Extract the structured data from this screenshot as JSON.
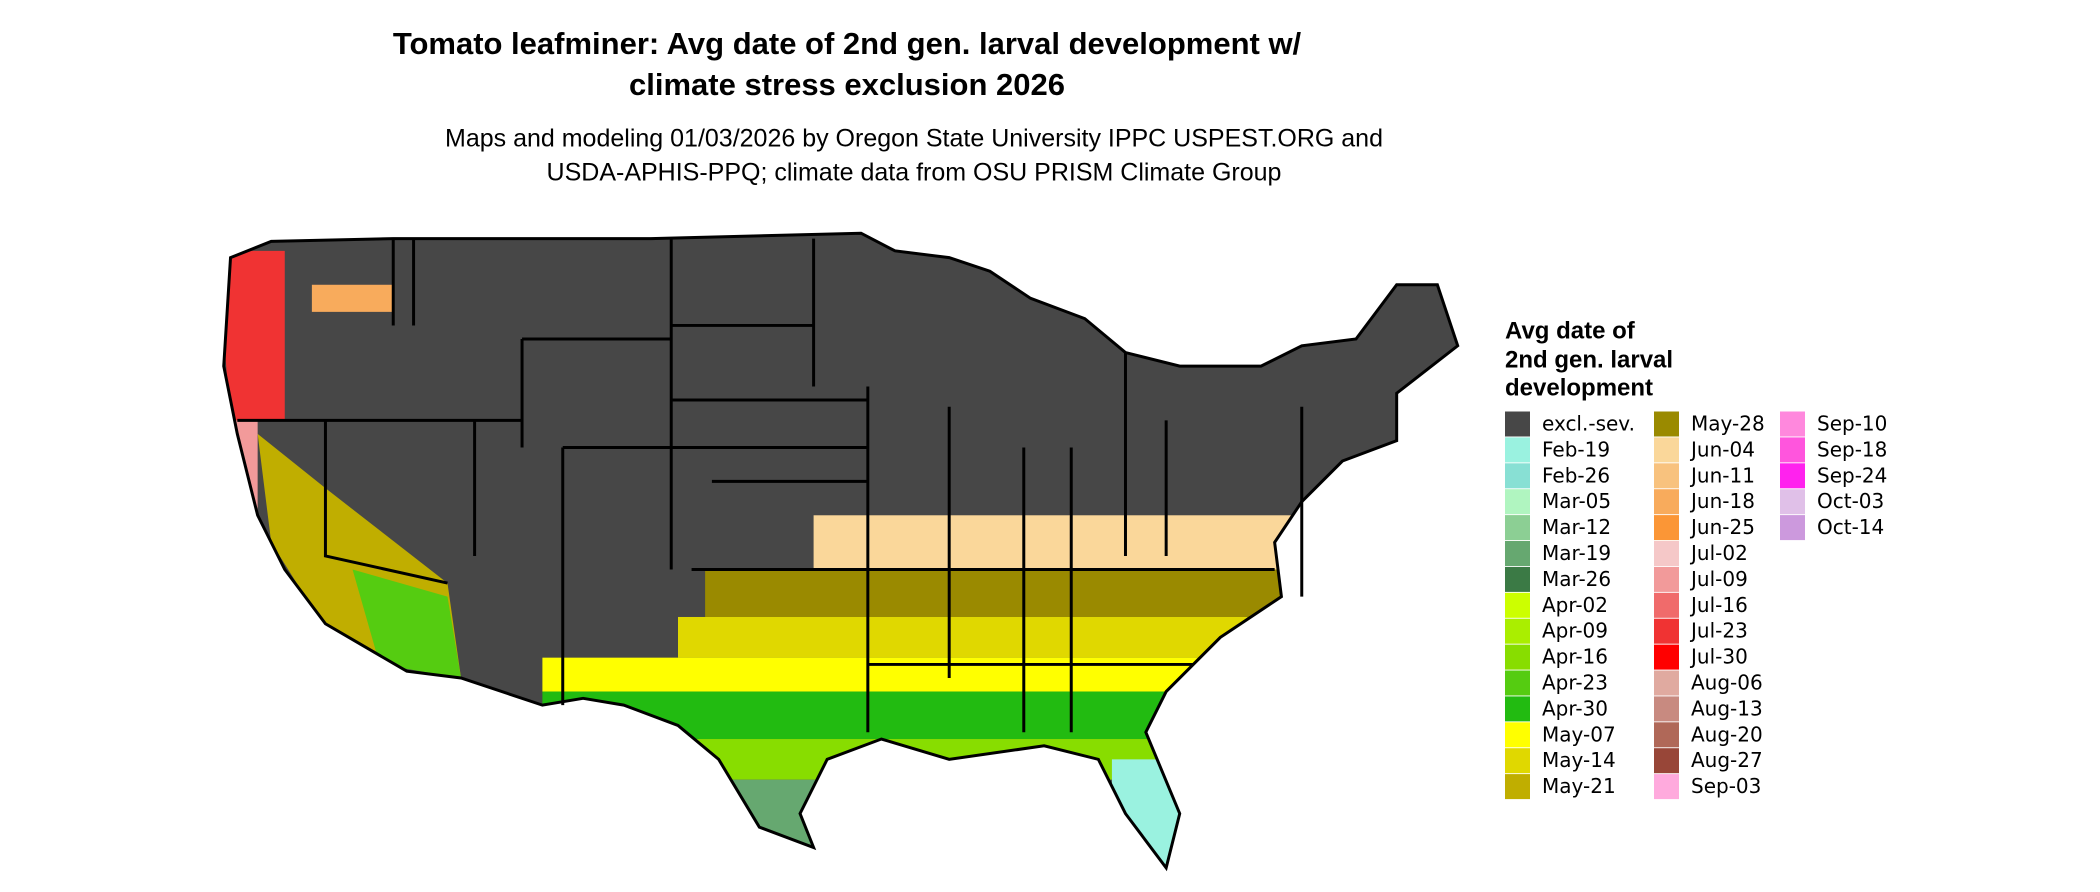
{
  "title_lines": [
    "Tomato leafminer: Avg date of 2nd gen. larval development w/",
    "climate stress exclusion 2026"
  ],
  "subtitle_lines": [
    "Maps and modeling 01/03/2026 by Oregon State University IPPC USPEST.ORG and",
    "USDA-APHIS-PPQ; climate data from OSU PRISM Climate Group"
  ],
  "legend": {
    "title_lines": [
      "Avg date of",
      "2nd gen. larval",
      "development"
    ],
    "items": [
      {
        "label": "excl.-sev.",
        "color": "#474747"
      },
      {
        "label": "Feb-19",
        "color": "#9af2e0"
      },
      {
        "label": "Feb-26",
        "color": "#88e0d4"
      },
      {
        "label": "Mar-05",
        "color": "#b0f5c0"
      },
      {
        "label": "Mar-12",
        "color": "#8ccf94"
      },
      {
        "label": "Mar-19",
        "color": "#66a870"
      },
      {
        "label": "Mar-26",
        "color": "#3b7a45"
      },
      {
        "label": "Apr-02",
        "color": "#ccff00"
      },
      {
        "label": "Apr-09",
        "color": "#aaee00"
      },
      {
        "label": "Apr-16",
        "color": "#88dd00"
      },
      {
        "label": "Apr-23",
        "color": "#55cc11"
      },
      {
        "label": "Apr-30",
        "color": "#22bb11"
      },
      {
        "label": "May-07",
        "color": "#ffff00"
      },
      {
        "label": "May-14",
        "color": "#e0d800"
      },
      {
        "label": "May-21",
        "color": "#c0ae00"
      },
      {
        "label": "May-28",
        "color": "#9a8a00"
      },
      {
        "label": "Jun-04",
        "color": "#fad79a"
      },
      {
        "label": "Jun-11",
        "color": "#f8c27e"
      },
      {
        "label": "Jun-18",
        "color": "#f8ab5c"
      },
      {
        "label": "Jun-25",
        "color": "#fb9636"
      },
      {
        "label": "Jul-02",
        "color": "#f5c8c8"
      },
      {
        "label": "Jul-09",
        "color": "#f29a9a"
      },
      {
        "label": "Jul-16",
        "color": "#f06b6b"
      },
      {
        "label": "Jul-23",
        "color": "#f03333"
      },
      {
        "label": "Jul-30",
        "color": "#ff0000"
      },
      {
        "label": "Aug-06",
        "color": "#e0aaa0"
      },
      {
        "label": "Aug-13",
        "color": "#c88a80"
      },
      {
        "label": "Aug-20",
        "color": "#b06858"
      },
      {
        "label": "Aug-27",
        "color": "#984638"
      },
      {
        "label": "Sep-03",
        "color": "#ffaadd"
      },
      {
        "label": "Sep-10",
        "color": "#ff88dd"
      },
      {
        "label": "Sep-18",
        "color": "#ff55dd"
      },
      {
        "label": "Sep-24",
        "color": "#ff22ee"
      },
      {
        "label": "Oct-03",
        "color": "#e0c0e8"
      },
      {
        "label": "Oct-14",
        "color": "#cc99dd"
      }
    ]
  }
}
